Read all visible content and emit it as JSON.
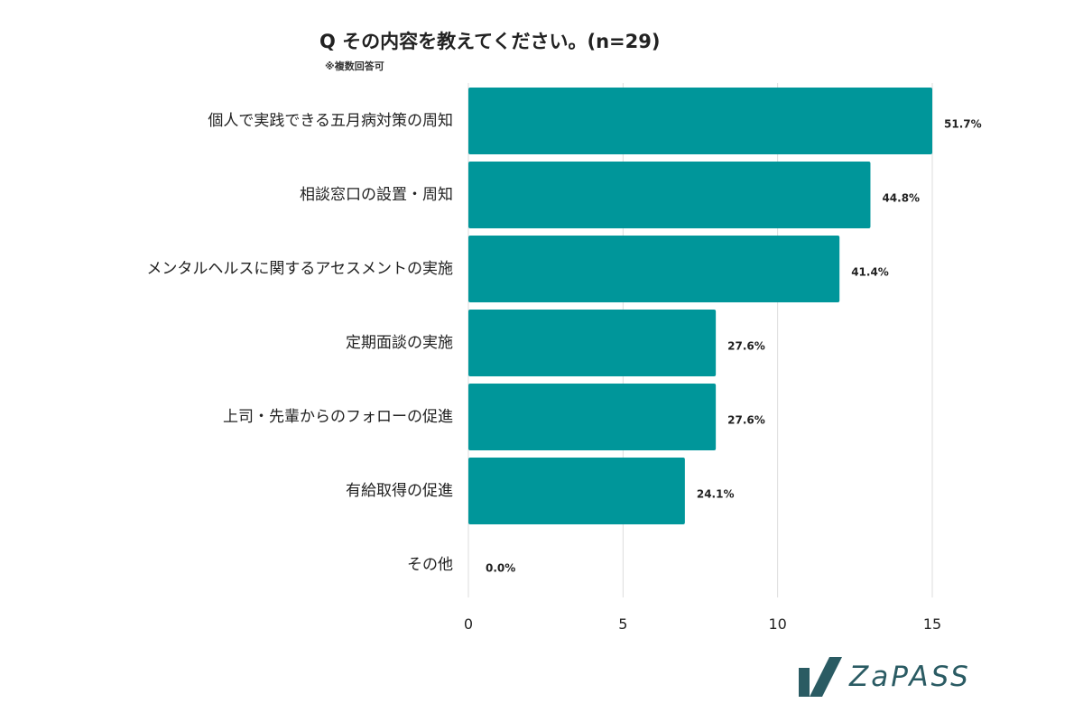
{
  "title": "Q その内容を教えてください。(n=29)",
  "subtitle": "※複数回答可",
  "logo": {
    "text": "ZaPASS"
  },
  "colors": {
    "bar": "#00969a",
    "grid": "#dddddd",
    "logo": "#2a5b63"
  },
  "chart_data": {
    "type": "bar",
    "orientation": "horizontal",
    "categories": [
      "個人で実践できる五月病対策の周知",
      "相談窓口の設置・周知",
      "メンタルヘルスに関するアセスメントの実施",
      "定期面談の実施",
      "上司・先輩からのフォローの促進",
      "有給取得の促進",
      "その他"
    ],
    "values": [
      15,
      13,
      12,
      8,
      8,
      7,
      0
    ],
    "data_labels": [
      "51.7%",
      "44.8%",
      "41.4%",
      "27.6%",
      "27.6%",
      "24.1%",
      "0.0%"
    ],
    "xlim": [
      0,
      15
    ],
    "xticks": [
      0,
      5,
      10,
      15
    ],
    "grid": true
  }
}
